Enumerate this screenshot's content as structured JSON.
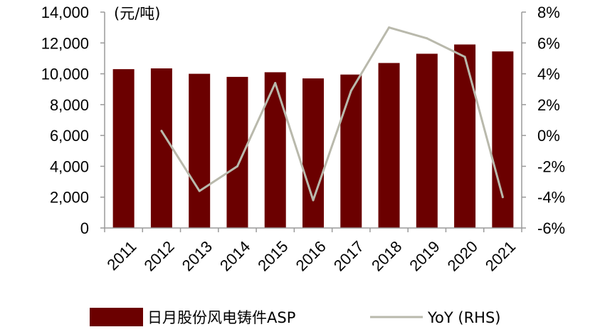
{
  "chart_data": {
    "type": "bar",
    "categories": [
      "2011",
      "2012",
      "2013",
      "2014",
      "2015",
      "2016",
      "2017",
      "2018",
      "2019",
      "2020",
      "2021"
    ],
    "series": [
      {
        "name": "日月股份风电铸件ASP",
        "type": "bar",
        "axis": "left",
        "color": "#6b0000",
        "values": [
          10300,
          10350,
          10000,
          9800,
          10100,
          9700,
          9950,
          10700,
          11300,
          11900,
          11450
        ]
      },
      {
        "name": "YoY (RHS)",
        "type": "line",
        "axis": "right",
        "color": "#b9b9ac",
        "values": [
          null,
          0.3,
          -3.6,
          -2.0,
          3.4,
          -4.2,
          2.9,
          7.0,
          6.3,
          5.1,
          -4.0
        ]
      }
    ],
    "y_left": {
      "unit_label": "(元/吨)",
      "ylim": [
        0,
        14000
      ],
      "tick_labels": [
        "0",
        "2,000",
        "4,000",
        "6,000",
        "8,000",
        "10,000",
        "12,000",
        "14,000"
      ]
    },
    "y_right": {
      "ylim": [
        -6,
        8
      ],
      "tick_labels": [
        "-6%",
        "-4%",
        "-2%",
        "0%",
        "2%",
        "4%",
        "6%",
        "8%"
      ]
    },
    "legend": {
      "placement": "bottom",
      "entries": [
        "日月股份风电铸件ASP",
        "YoY (RHS)"
      ]
    },
    "grid": false
  }
}
